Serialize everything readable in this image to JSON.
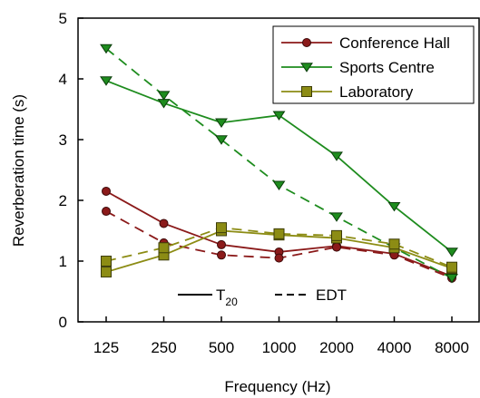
{
  "chart_data": {
    "type": "line",
    "categories": [
      "125",
      "250",
      "500",
      "1000",
      "2000",
      "4000",
      "8000"
    ],
    "xlabel": "Frequency (Hz)",
    "ylabel": "Reverberation time (s)",
    "ylim": [
      0,
      5
    ],
    "y_ticks": [
      "0",
      "1",
      "2",
      "3",
      "4",
      "5"
    ],
    "grid": false,
    "legend_position": "top-right",
    "series": [
      {
        "name": "Conference Hall",
        "color": "#8b1a1a",
        "marker": "circle",
        "t20": [
          2.15,
          1.62,
          1.27,
          1.15,
          1.25,
          1.12,
          0.75
        ],
        "edt": [
          1.82,
          1.3,
          1.1,
          1.05,
          1.23,
          1.1,
          0.72
        ]
      },
      {
        "name": "Sports Centre",
        "color": "#1e8c1e",
        "marker": "triangle-down",
        "t20": [
          3.97,
          3.6,
          3.28,
          3.4,
          2.73,
          1.9,
          1.15
        ],
        "edt": [
          4.5,
          3.73,
          3.0,
          2.25,
          1.73,
          1.22,
          0.72
        ]
      },
      {
        "name": "Laboratory",
        "color": "#8c8c14",
        "marker": "square",
        "t20": [
          0.82,
          1.1,
          1.5,
          1.43,
          1.38,
          1.22,
          0.88
        ],
        "edt": [
          1.0,
          1.22,
          1.55,
          1.45,
          1.42,
          1.28,
          0.9
        ]
      }
    ],
    "line_key": {
      "solid_label": "T",
      "solid_subscript": "20",
      "dashed_label": "EDT"
    }
  }
}
